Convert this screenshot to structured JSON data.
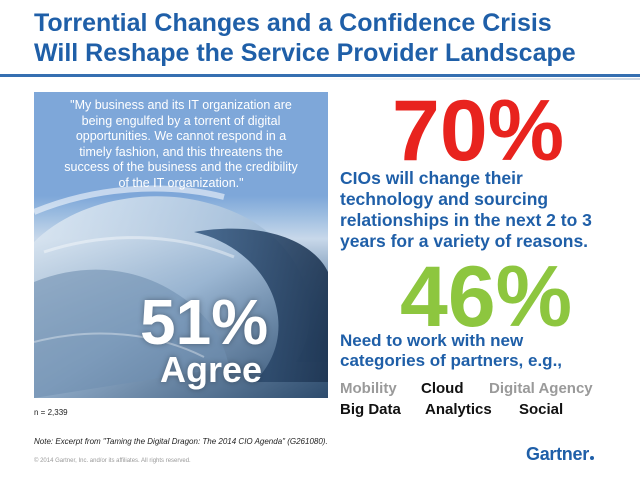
{
  "title": {
    "line1": "Torrential Changes and a Confidence Crisis",
    "line2": "Will Reshape the Service Provider Landscape"
  },
  "quote": {
    "line1": "\"My business and its IT organization are",
    "line2": "being engulfed by a torrent of digital",
    "line3": "opportunities. We cannot respond in a",
    "line4": "timely fashion, and this threatens the",
    "line5": "success of the business and the credibility",
    "line6": "of the IT organization.\""
  },
  "agree_stat": {
    "value": "51%",
    "label": "Agree"
  },
  "sample": "n = 2,339",
  "stat1": {
    "value": "70%",
    "color": "#e8231e",
    "line1": "CIOs will change their",
    "line2": "technology and sourcing",
    "line3": "relationships in the next 2 to 3",
    "line4": "years for a variety of reasons."
  },
  "stat2": {
    "value": "46%",
    "color": "#8dc63f",
    "line1": "Need to work with new",
    "line2": "categories of partners, e.g.,"
  },
  "categories": {
    "row1": [
      "Mobility",
      "Cloud",
      "Digital Agency"
    ],
    "row2": [
      "Big Data",
      "Analytics",
      "Social"
    ]
  },
  "note": "Note: Excerpt from \"Taming the Digital Dragon: The 2014 CIO Agenda\" (G261080).",
  "copyright": "© 2014 Gartner, Inc. and/or its affiliates. All rights reserved.",
  "logo": "Gartner",
  "colors": {
    "brand_blue": "#1f5fa8",
    "accent_red": "#e8231e",
    "accent_green": "#8dc63f"
  }
}
